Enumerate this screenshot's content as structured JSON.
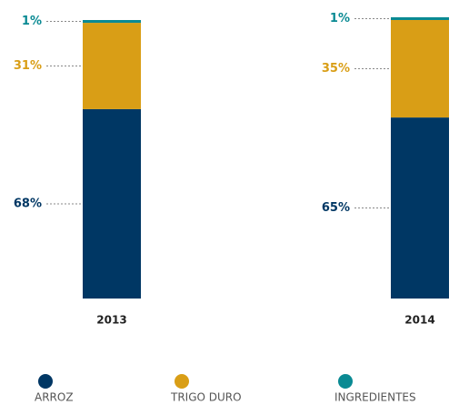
{
  "chart_data": {
    "type": "stacked_bar",
    "categories": [
      "2013",
      "2014"
    ],
    "series": [
      {
        "name": "ARROZ",
        "color": "#003764",
        "values": [
          68,
          65
        ],
        "value_labels": [
          "68%",
          "65%"
        ]
      },
      {
        "name": "TRIGO DURO",
        "color": "#d99e16",
        "values": [
          31,
          35
        ],
        "value_labels": [
          "31%",
          "35%"
        ]
      },
      {
        "name": "INGREDIENTES",
        "color": "#0a8a93",
        "values": [
          1,
          1
        ],
        "value_labels": [
          "1%",
          "1%"
        ]
      }
    ]
  }
}
